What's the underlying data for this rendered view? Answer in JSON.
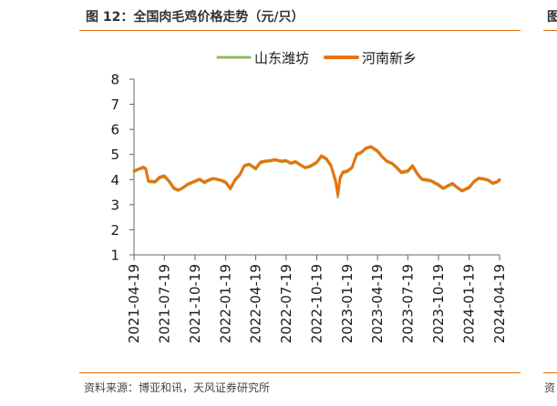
{
  "title": "图 12：全国肉毛鸡价格走势（元/只）",
  "source": "资料来源：博亚和讯，天风证券研究所",
  "next_panel": {
    "title": "图",
    "source": "资"
  },
  "colors": {
    "accent": "#e46c0a",
    "series_green": "#8fbc5a",
    "series_orange": "#e8720c",
    "axis": "#666666"
  },
  "chart_data": {
    "type": "line",
    "title": "",
    "xlabel": "",
    "ylabel": "",
    "ylim": [
      1,
      8
    ],
    "yticks": [
      1,
      2,
      3,
      4,
      5,
      6,
      7,
      8
    ],
    "x_range": [
      "2021-04-19",
      "2024-04-19"
    ],
    "xticks": [
      "2021-04-19",
      "2021-07-19",
      "2021-10-19",
      "2022-01-19",
      "2022-04-19",
      "2022-07-19",
      "2022-10-19",
      "2023-01-19",
      "2023-04-19",
      "2023-07-19",
      "2023-10-19",
      "2024-01-19",
      "2024-04-19"
    ],
    "legend_position": "top",
    "grid": false,
    "series": [
      {
        "name": "山东潍坊",
        "color": "#8fbc5a",
        "points": [
          [
            "2021-04-19",
            4.3
          ],
          [
            "2021-05-03",
            4.4
          ],
          [
            "2021-05-17",
            4.45
          ],
          [
            "2021-05-24",
            4.4
          ],
          [
            "2021-06-01",
            3.9
          ],
          [
            "2021-06-21",
            3.88
          ],
          [
            "2021-07-05",
            4.05
          ],
          [
            "2021-07-19",
            4.1
          ],
          [
            "2021-08-02",
            3.9
          ],
          [
            "2021-08-16",
            3.62
          ],
          [
            "2021-08-30",
            3.55
          ],
          [
            "2021-09-13",
            3.65
          ],
          [
            "2021-09-27",
            3.78
          ],
          [
            "2021-10-19",
            3.9
          ],
          [
            "2021-11-02",
            3.98
          ],
          [
            "2021-11-16",
            3.85
          ],
          [
            "2021-11-30",
            3.95
          ],
          [
            "2021-12-14",
            4.02
          ],
          [
            "2022-01-04",
            3.95
          ],
          [
            "2022-01-19",
            3.85
          ],
          [
            "2022-02-02",
            3.6
          ],
          [
            "2022-02-16",
            3.95
          ],
          [
            "2022-03-02",
            4.15
          ],
          [
            "2022-03-16",
            4.52
          ],
          [
            "2022-03-30",
            4.58
          ],
          [
            "2022-04-19",
            4.4
          ],
          [
            "2022-05-03",
            4.65
          ],
          [
            "2022-05-17",
            4.7
          ],
          [
            "2022-06-01",
            4.72
          ],
          [
            "2022-06-15",
            4.76
          ],
          [
            "2022-07-05",
            4.7
          ],
          [
            "2022-07-19",
            4.72
          ],
          [
            "2022-08-02",
            4.62
          ],
          [
            "2022-08-16",
            4.68
          ],
          [
            "2022-09-01",
            4.55
          ],
          [
            "2022-09-15",
            4.45
          ],
          [
            "2022-09-29",
            4.5
          ],
          [
            "2022-10-19",
            4.65
          ],
          [
            "2022-11-02",
            4.9
          ],
          [
            "2022-11-16",
            4.8
          ],
          [
            "2022-11-30",
            4.52
          ],
          [
            "2022-12-14",
            3.9
          ],
          [
            "2022-12-21",
            3.28
          ],
          [
            "2022-12-28",
            4.0
          ],
          [
            "2023-01-05",
            4.25
          ],
          [
            "2023-01-19",
            4.3
          ],
          [
            "2023-02-02",
            4.45
          ],
          [
            "2023-02-16",
            4.98
          ],
          [
            "2023-03-02",
            5.05
          ],
          [
            "2023-03-16",
            5.22
          ],
          [
            "2023-03-30",
            5.28
          ],
          [
            "2023-04-19",
            5.1
          ],
          [
            "2023-05-03",
            4.88
          ],
          [
            "2023-05-17",
            4.7
          ],
          [
            "2023-06-01",
            4.62
          ],
          [
            "2023-06-15",
            4.45
          ],
          [
            "2023-06-29",
            4.25
          ],
          [
            "2023-07-19",
            4.3
          ],
          [
            "2023-08-02",
            4.5
          ],
          [
            "2023-08-16",
            4.2
          ],
          [
            "2023-08-30",
            3.98
          ],
          [
            "2023-09-13",
            3.95
          ],
          [
            "2023-09-27",
            3.92
          ],
          [
            "2023-10-19",
            3.75
          ],
          [
            "2023-11-02",
            3.62
          ],
          [
            "2023-11-16",
            3.72
          ],
          [
            "2023-11-30",
            3.8
          ],
          [
            "2023-12-14",
            3.65
          ],
          [
            "2023-12-28",
            3.52
          ],
          [
            "2024-01-19",
            3.65
          ],
          [
            "2024-02-02",
            3.88
          ],
          [
            "2024-02-16",
            4.02
          ],
          [
            "2024-03-02",
            4.0
          ],
          [
            "2024-03-16",
            3.95
          ],
          [
            "2024-03-30",
            3.82
          ],
          [
            "2024-04-12",
            3.88
          ],
          [
            "2024-04-19",
            3.95
          ]
        ]
      },
      {
        "name": "河南新乡",
        "color": "#e8720c",
        "points": [
          [
            "2021-04-19",
            4.35
          ],
          [
            "2021-05-03",
            4.42
          ],
          [
            "2021-05-17",
            4.5
          ],
          [
            "2021-05-24",
            4.45
          ],
          [
            "2021-06-01",
            3.95
          ],
          [
            "2021-06-21",
            3.92
          ],
          [
            "2021-07-05",
            4.1
          ],
          [
            "2021-07-19",
            4.15
          ],
          [
            "2021-08-02",
            3.95
          ],
          [
            "2021-08-16",
            3.68
          ],
          [
            "2021-08-30",
            3.58
          ],
          [
            "2021-09-13",
            3.68
          ],
          [
            "2021-09-27",
            3.82
          ],
          [
            "2021-10-19",
            3.95
          ],
          [
            "2021-11-02",
            4.02
          ],
          [
            "2021-11-16",
            3.9
          ],
          [
            "2021-11-30",
            4.0
          ],
          [
            "2021-12-14",
            4.05
          ],
          [
            "2022-01-04",
            3.98
          ],
          [
            "2022-01-19",
            3.9
          ],
          [
            "2022-02-02",
            3.65
          ],
          [
            "2022-02-16",
            4.0
          ],
          [
            "2022-03-02",
            4.2
          ],
          [
            "2022-03-16",
            4.56
          ],
          [
            "2022-03-30",
            4.62
          ],
          [
            "2022-04-19",
            4.45
          ],
          [
            "2022-05-03",
            4.7
          ],
          [
            "2022-05-17",
            4.74
          ],
          [
            "2022-06-01",
            4.76
          ],
          [
            "2022-06-15",
            4.8
          ],
          [
            "2022-07-05",
            4.74
          ],
          [
            "2022-07-19",
            4.76
          ],
          [
            "2022-08-02",
            4.66
          ],
          [
            "2022-08-16",
            4.72
          ],
          [
            "2022-09-01",
            4.58
          ],
          [
            "2022-09-15",
            4.48
          ],
          [
            "2022-09-29",
            4.54
          ],
          [
            "2022-10-19",
            4.7
          ],
          [
            "2022-11-02",
            4.95
          ],
          [
            "2022-11-16",
            4.85
          ],
          [
            "2022-11-30",
            4.58
          ],
          [
            "2022-12-14",
            3.98
          ],
          [
            "2022-12-21",
            3.4
          ],
          [
            "2022-12-28",
            4.08
          ],
          [
            "2023-01-05",
            4.3
          ],
          [
            "2023-01-19",
            4.35
          ],
          [
            "2023-02-02",
            4.5
          ],
          [
            "2023-02-16",
            5.02
          ],
          [
            "2023-03-02",
            5.1
          ],
          [
            "2023-03-16",
            5.26
          ],
          [
            "2023-03-30",
            5.32
          ],
          [
            "2023-04-19",
            5.15
          ],
          [
            "2023-05-03",
            4.92
          ],
          [
            "2023-05-17",
            4.74
          ],
          [
            "2023-06-01",
            4.66
          ],
          [
            "2023-06-15",
            4.5
          ],
          [
            "2023-06-29",
            4.3
          ],
          [
            "2023-07-19",
            4.35
          ],
          [
            "2023-08-02",
            4.56
          ],
          [
            "2023-08-16",
            4.25
          ],
          [
            "2023-08-30",
            4.02
          ],
          [
            "2023-09-13",
            4.0
          ],
          [
            "2023-09-27",
            3.96
          ],
          [
            "2023-10-19",
            3.8
          ],
          [
            "2023-11-02",
            3.66
          ],
          [
            "2023-11-16",
            3.76
          ],
          [
            "2023-11-30",
            3.85
          ],
          [
            "2023-12-14",
            3.7
          ],
          [
            "2023-12-28",
            3.56
          ],
          [
            "2024-01-19",
            3.7
          ],
          [
            "2024-02-02",
            3.92
          ],
          [
            "2024-02-16",
            4.06
          ],
          [
            "2024-03-02",
            4.04
          ],
          [
            "2024-03-16",
            3.98
          ],
          [
            "2024-03-30",
            3.86
          ],
          [
            "2024-04-12",
            3.92
          ],
          [
            "2024-04-19",
            4.0
          ]
        ]
      }
    ]
  }
}
